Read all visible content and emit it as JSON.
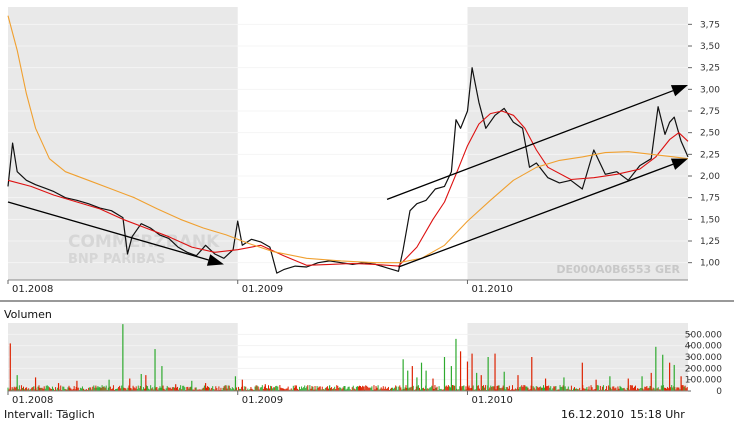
{
  "chart_data": [
    {
      "type": "line",
      "panel": "price",
      "y_ticks": [
        "3,75",
        "3,50",
        "3,25",
        "3,00",
        "2,75",
        "2,50",
        "2,25",
        "2,00",
        "1,75",
        "1,50",
        "1,25",
        "1,00"
      ],
      "y_tick_values": [
        3.75,
        3.5,
        3.25,
        3.0,
        2.75,
        2.5,
        2.25,
        2.0,
        1.75,
        1.5,
        1.25,
        1.0
      ],
      "ylim": [
        0.8,
        3.95
      ],
      "x_ticks": [
        "01.2008",
        "01.2009",
        "01.2010"
      ],
      "x_tick_positions": [
        2008.0,
        2009.0,
        2010.0
      ],
      "xlim": [
        2008.0,
        2010.96
      ],
      "shaded_years": [
        [
          2008.0,
          2009.0
        ],
        [
          2010.0,
          2010.96
        ]
      ],
      "watermark_isin": "DE000A0B6553 GER",
      "watermark_brand": [
        "COMMERZBANK",
        "BNP PARIBAS"
      ],
      "series": [
        {
          "color": "#111111",
          "points": [
            [
              2008.0,
              1.88
            ],
            [
              2008.02,
              2.38
            ],
            [
              2008.04,
              2.05
            ],
            [
              2008.08,
              1.95
            ],
            [
              2008.12,
              1.9
            ],
            [
              2008.16,
              1.86
            ],
            [
              2008.2,
              1.82
            ],
            [
              2008.25,
              1.75
            ],
            [
              2008.3,
              1.72
            ],
            [
              2008.35,
              1.68
            ],
            [
              2008.4,
              1.63
            ],
            [
              2008.45,
              1.6
            ],
            [
              2008.5,
              1.52
            ],
            [
              2008.52,
              1.1
            ],
            [
              2008.54,
              1.3
            ],
            [
              2008.58,
              1.45
            ],
            [
              2008.62,
              1.4
            ],
            [
              2008.66,
              1.32
            ],
            [
              2008.7,
              1.28
            ],
            [
              2008.74,
              1.18
            ],
            [
              2008.78,
              1.12
            ],
            [
              2008.82,
              1.08
            ],
            [
              2008.86,
              1.2
            ],
            [
              2008.9,
              1.1
            ],
            [
              2008.94,
              1.05
            ],
            [
              2008.98,
              1.15
            ],
            [
              2009.0,
              1.48
            ],
            [
              2009.02,
              1.2
            ],
            [
              2009.06,
              1.27
            ],
            [
              2009.1,
              1.24
            ],
            [
              2009.14,
              1.18
            ],
            [
              2009.17,
              0.88
            ],
            [
              2009.2,
              0.92
            ],
            [
              2009.25,
              0.96
            ],
            [
              2009.3,
              0.95
            ],
            [
              2009.35,
              1.0
            ],
            [
              2009.4,
              1.02
            ],
            [
              2009.45,
              1.0
            ],
            [
              2009.5,
              0.98
            ],
            [
              2009.55,
              1.0
            ],
            [
              2009.6,
              0.98
            ],
            [
              2009.65,
              0.94
            ],
            [
              2009.7,
              0.9
            ],
            [
              2009.72,
              1.15
            ],
            [
              2009.75,
              1.6
            ],
            [
              2009.78,
              1.68
            ],
            [
              2009.82,
              1.72
            ],
            [
              2009.86,
              1.85
            ],
            [
              2009.9,
              1.88
            ],
            [
              2009.93,
              2.05
            ],
            [
              2009.95,
              2.65
            ],
            [
              2009.97,
              2.55
            ],
            [
              2010.0,
              2.75
            ],
            [
              2010.02,
              3.25
            ],
            [
              2010.05,
              2.85
            ],
            [
              2010.08,
              2.55
            ],
            [
              2010.12,
              2.7
            ],
            [
              2010.16,
              2.78
            ],
            [
              2010.2,
              2.62
            ],
            [
              2010.24,
              2.55
            ],
            [
              2010.27,
              2.1
            ],
            [
              2010.3,
              2.15
            ],
            [
              2010.35,
              1.98
            ],
            [
              2010.4,
              1.92
            ],
            [
              2010.45,
              1.95
            ],
            [
              2010.5,
              1.85
            ],
            [
              2010.55,
              2.3
            ],
            [
              2010.6,
              2.02
            ],
            [
              2010.65,
              2.05
            ],
            [
              2010.7,
              1.95
            ],
            [
              2010.75,
              2.12
            ],
            [
              2010.8,
              2.2
            ],
            [
              2010.83,
              2.8
            ],
            [
              2010.86,
              2.48
            ],
            [
              2010.88,
              2.62
            ],
            [
              2010.9,
              2.68
            ],
            [
              2010.93,
              2.4
            ],
            [
              2010.96,
              2.22
            ]
          ]
        },
        {
          "color": "#dd1111",
          "points": [
            [
              2008.0,
              1.95
            ],
            [
              2008.1,
              1.88
            ],
            [
              2008.2,
              1.78
            ],
            [
              2008.3,
              1.7
            ],
            [
              2008.4,
              1.62
            ],
            [
              2008.5,
              1.5
            ],
            [
              2008.6,
              1.4
            ],
            [
              2008.7,
              1.3
            ],
            [
              2008.8,
              1.18
            ],
            [
              2008.9,
              1.12
            ],
            [
              2009.0,
              1.15
            ],
            [
              2009.1,
              1.2
            ],
            [
              2009.2,
              1.08
            ],
            [
              2009.3,
              0.97
            ],
            [
              2009.4,
              0.98
            ],
            [
              2009.5,
              0.99
            ],
            [
              2009.6,
              0.98
            ],
            [
              2009.7,
              0.96
            ],
            [
              2009.78,
              1.18
            ],
            [
              2009.85,
              1.5
            ],
            [
              2009.9,
              1.7
            ],
            [
              2009.95,
              2.02
            ],
            [
              2010.0,
              2.35
            ],
            [
              2010.05,
              2.6
            ],
            [
              2010.1,
              2.72
            ],
            [
              2010.15,
              2.75
            ],
            [
              2010.2,
              2.7
            ],
            [
              2010.25,
              2.55
            ],
            [
              2010.3,
              2.3
            ],
            [
              2010.35,
              2.1
            ],
            [
              2010.45,
              1.96
            ],
            [
              2010.55,
              1.98
            ],
            [
              2010.65,
              2.02
            ],
            [
              2010.75,
              2.08
            ],
            [
              2010.82,
              2.22
            ],
            [
              2010.88,
              2.42
            ],
            [
              2010.92,
              2.5
            ],
            [
              2010.96,
              2.4
            ]
          ]
        },
        {
          "color": "#f0a030",
          "points": [
            [
              2008.0,
              3.85
            ],
            [
              2008.04,
              3.45
            ],
            [
              2008.08,
              2.95
            ],
            [
              2008.12,
              2.55
            ],
            [
              2008.18,
              2.2
            ],
            [
              2008.25,
              2.05
            ],
            [
              2008.35,
              1.95
            ],
            [
              2008.45,
              1.85
            ],
            [
              2008.55,
              1.75
            ],
            [
              2008.65,
              1.62
            ],
            [
              2008.75,
              1.5
            ],
            [
              2008.85,
              1.4
            ],
            [
              2008.95,
              1.32
            ],
            [
              2009.05,
              1.22
            ],
            [
              2009.15,
              1.13
            ],
            [
              2009.3,
              1.05
            ],
            [
              2009.45,
              1.02
            ],
            [
              2009.6,
              1.0
            ],
            [
              2009.7,
              1.0
            ],
            [
              2009.8,
              1.05
            ],
            [
              2009.9,
              1.2
            ],
            [
              2010.0,
              1.48
            ],
            [
              2010.1,
              1.72
            ],
            [
              2010.2,
              1.95
            ],
            [
              2010.3,
              2.1
            ],
            [
              2010.4,
              2.18
            ],
            [
              2010.5,
              2.22
            ],
            [
              2010.6,
              2.27
            ],
            [
              2010.7,
              2.28
            ],
            [
              2010.8,
              2.25
            ],
            [
              2010.9,
              2.22
            ],
            [
              2010.96,
              2.2
            ]
          ]
        }
      ],
      "trend_arrows": [
        {
          "from": [
            2008.0,
            1.7
          ],
          "to": [
            2008.94,
            0.98
          ]
        },
        {
          "from": [
            2009.65,
            1.73
          ],
          "to": [
            2010.96,
            3.05
          ]
        },
        {
          "from": [
            2009.7,
            0.95
          ],
          "to": [
            2010.96,
            2.2
          ]
        }
      ]
    },
    {
      "type": "bar",
      "panel": "volume",
      "title": "Volumen",
      "y_ticks": [
        "500.000",
        "400.000",
        "300.000",
        "200.000",
        "100.000",
        "0"
      ],
      "y_tick_values": [
        500000,
        400000,
        300000,
        200000,
        100000,
        0
      ],
      "ylim": [
        0,
        600000
      ],
      "x_ticks": [
        "01.2008",
        "01.2009",
        "01.2010"
      ],
      "x_tick_positions": [
        2008.0,
        2009.0,
        2010.0
      ],
      "xlim": [
        2008.0,
        2010.96
      ],
      "shaded_years": [
        [
          2008.0,
          2009.0
        ],
        [
          2010.0,
          2010.96
        ]
      ],
      "colors": {
        "up": "#2eaa2e",
        "down": "#dd2200"
      },
      "spikes": [
        {
          "x": 2008.01,
          "v": 420000,
          "c": "down"
        },
        {
          "x": 2008.04,
          "v": 140000,
          "c": "up"
        },
        {
          "x": 2008.12,
          "v": 120000,
          "c": "down"
        },
        {
          "x": 2008.22,
          "v": 70000,
          "c": "down"
        },
        {
          "x": 2008.3,
          "v": 90000,
          "c": "down"
        },
        {
          "x": 2008.44,
          "v": 100000,
          "c": "up"
        },
        {
          "x": 2008.5,
          "v": 590000,
          "c": "up"
        },
        {
          "x": 2008.53,
          "v": 110000,
          "c": "down"
        },
        {
          "x": 2008.58,
          "v": 150000,
          "c": "up"
        },
        {
          "x": 2008.6,
          "v": 140000,
          "c": "down"
        },
        {
          "x": 2008.64,
          "v": 370000,
          "c": "up"
        },
        {
          "x": 2008.67,
          "v": 220000,
          "c": "up"
        },
        {
          "x": 2008.73,
          "v": 60000,
          "c": "down"
        },
        {
          "x": 2008.8,
          "v": 90000,
          "c": "up"
        },
        {
          "x": 2008.86,
          "v": 70000,
          "c": "down"
        },
        {
          "x": 2008.99,
          "v": 130000,
          "c": "up"
        },
        {
          "x": 2009.02,
          "v": 100000,
          "c": "down"
        },
        {
          "x": 2009.12,
          "v": 60000,
          "c": "down"
        },
        {
          "x": 2009.25,
          "v": 50000,
          "c": "down"
        },
        {
          "x": 2009.4,
          "v": 50000,
          "c": "up"
        },
        {
          "x": 2009.55,
          "v": 40000,
          "c": "down"
        },
        {
          "x": 2009.72,
          "v": 280000,
          "c": "up"
        },
        {
          "x": 2009.74,
          "v": 180000,
          "c": "up"
        },
        {
          "x": 2009.76,
          "v": 220000,
          "c": "down"
        },
        {
          "x": 2009.78,
          "v": 120000,
          "c": "up"
        },
        {
          "x": 2009.8,
          "v": 250000,
          "c": "up"
        },
        {
          "x": 2009.82,
          "v": 180000,
          "c": "up"
        },
        {
          "x": 2009.85,
          "v": 110000,
          "c": "down"
        },
        {
          "x": 2009.9,
          "v": 300000,
          "c": "up"
        },
        {
          "x": 2009.93,
          "v": 220000,
          "c": "up"
        },
        {
          "x": 2009.95,
          "v": 460000,
          "c": "up"
        },
        {
          "x": 2009.97,
          "v": 350000,
          "c": "down"
        },
        {
          "x": 2010.0,
          "v": 260000,
          "c": "down"
        },
        {
          "x": 2010.02,
          "v": 330000,
          "c": "down"
        },
        {
          "x": 2010.04,
          "v": 160000,
          "c": "up"
        },
        {
          "x": 2010.06,
          "v": 140000,
          "c": "down"
        },
        {
          "x": 2010.09,
          "v": 300000,
          "c": "up"
        },
        {
          "x": 2010.12,
          "v": 330000,
          "c": "down"
        },
        {
          "x": 2010.16,
          "v": 170000,
          "c": "up"
        },
        {
          "x": 2010.22,
          "v": 140000,
          "c": "down"
        },
        {
          "x": 2010.28,
          "v": 300000,
          "c": "down"
        },
        {
          "x": 2010.34,
          "v": 110000,
          "c": "down"
        },
        {
          "x": 2010.42,
          "v": 120000,
          "c": "up"
        },
        {
          "x": 2010.5,
          "v": 250000,
          "c": "down"
        },
        {
          "x": 2010.56,
          "v": 100000,
          "c": "down"
        },
        {
          "x": 2010.62,
          "v": 130000,
          "c": "up"
        },
        {
          "x": 2010.7,
          "v": 110000,
          "c": "down"
        },
        {
          "x": 2010.76,
          "v": 130000,
          "c": "up"
        },
        {
          "x": 2010.8,
          "v": 160000,
          "c": "down"
        },
        {
          "x": 2010.82,
          "v": 390000,
          "c": "up"
        },
        {
          "x": 2010.85,
          "v": 320000,
          "c": "up"
        },
        {
          "x": 2010.88,
          "v": 250000,
          "c": "down"
        },
        {
          "x": 2010.9,
          "v": 230000,
          "c": "up"
        },
        {
          "x": 2010.93,
          "v": 130000,
          "c": "down"
        }
      ]
    }
  ],
  "footer": {
    "interval": "Intervall: Täglich",
    "date": "16.12.2010",
    "time": "15:18 Uhr"
  }
}
